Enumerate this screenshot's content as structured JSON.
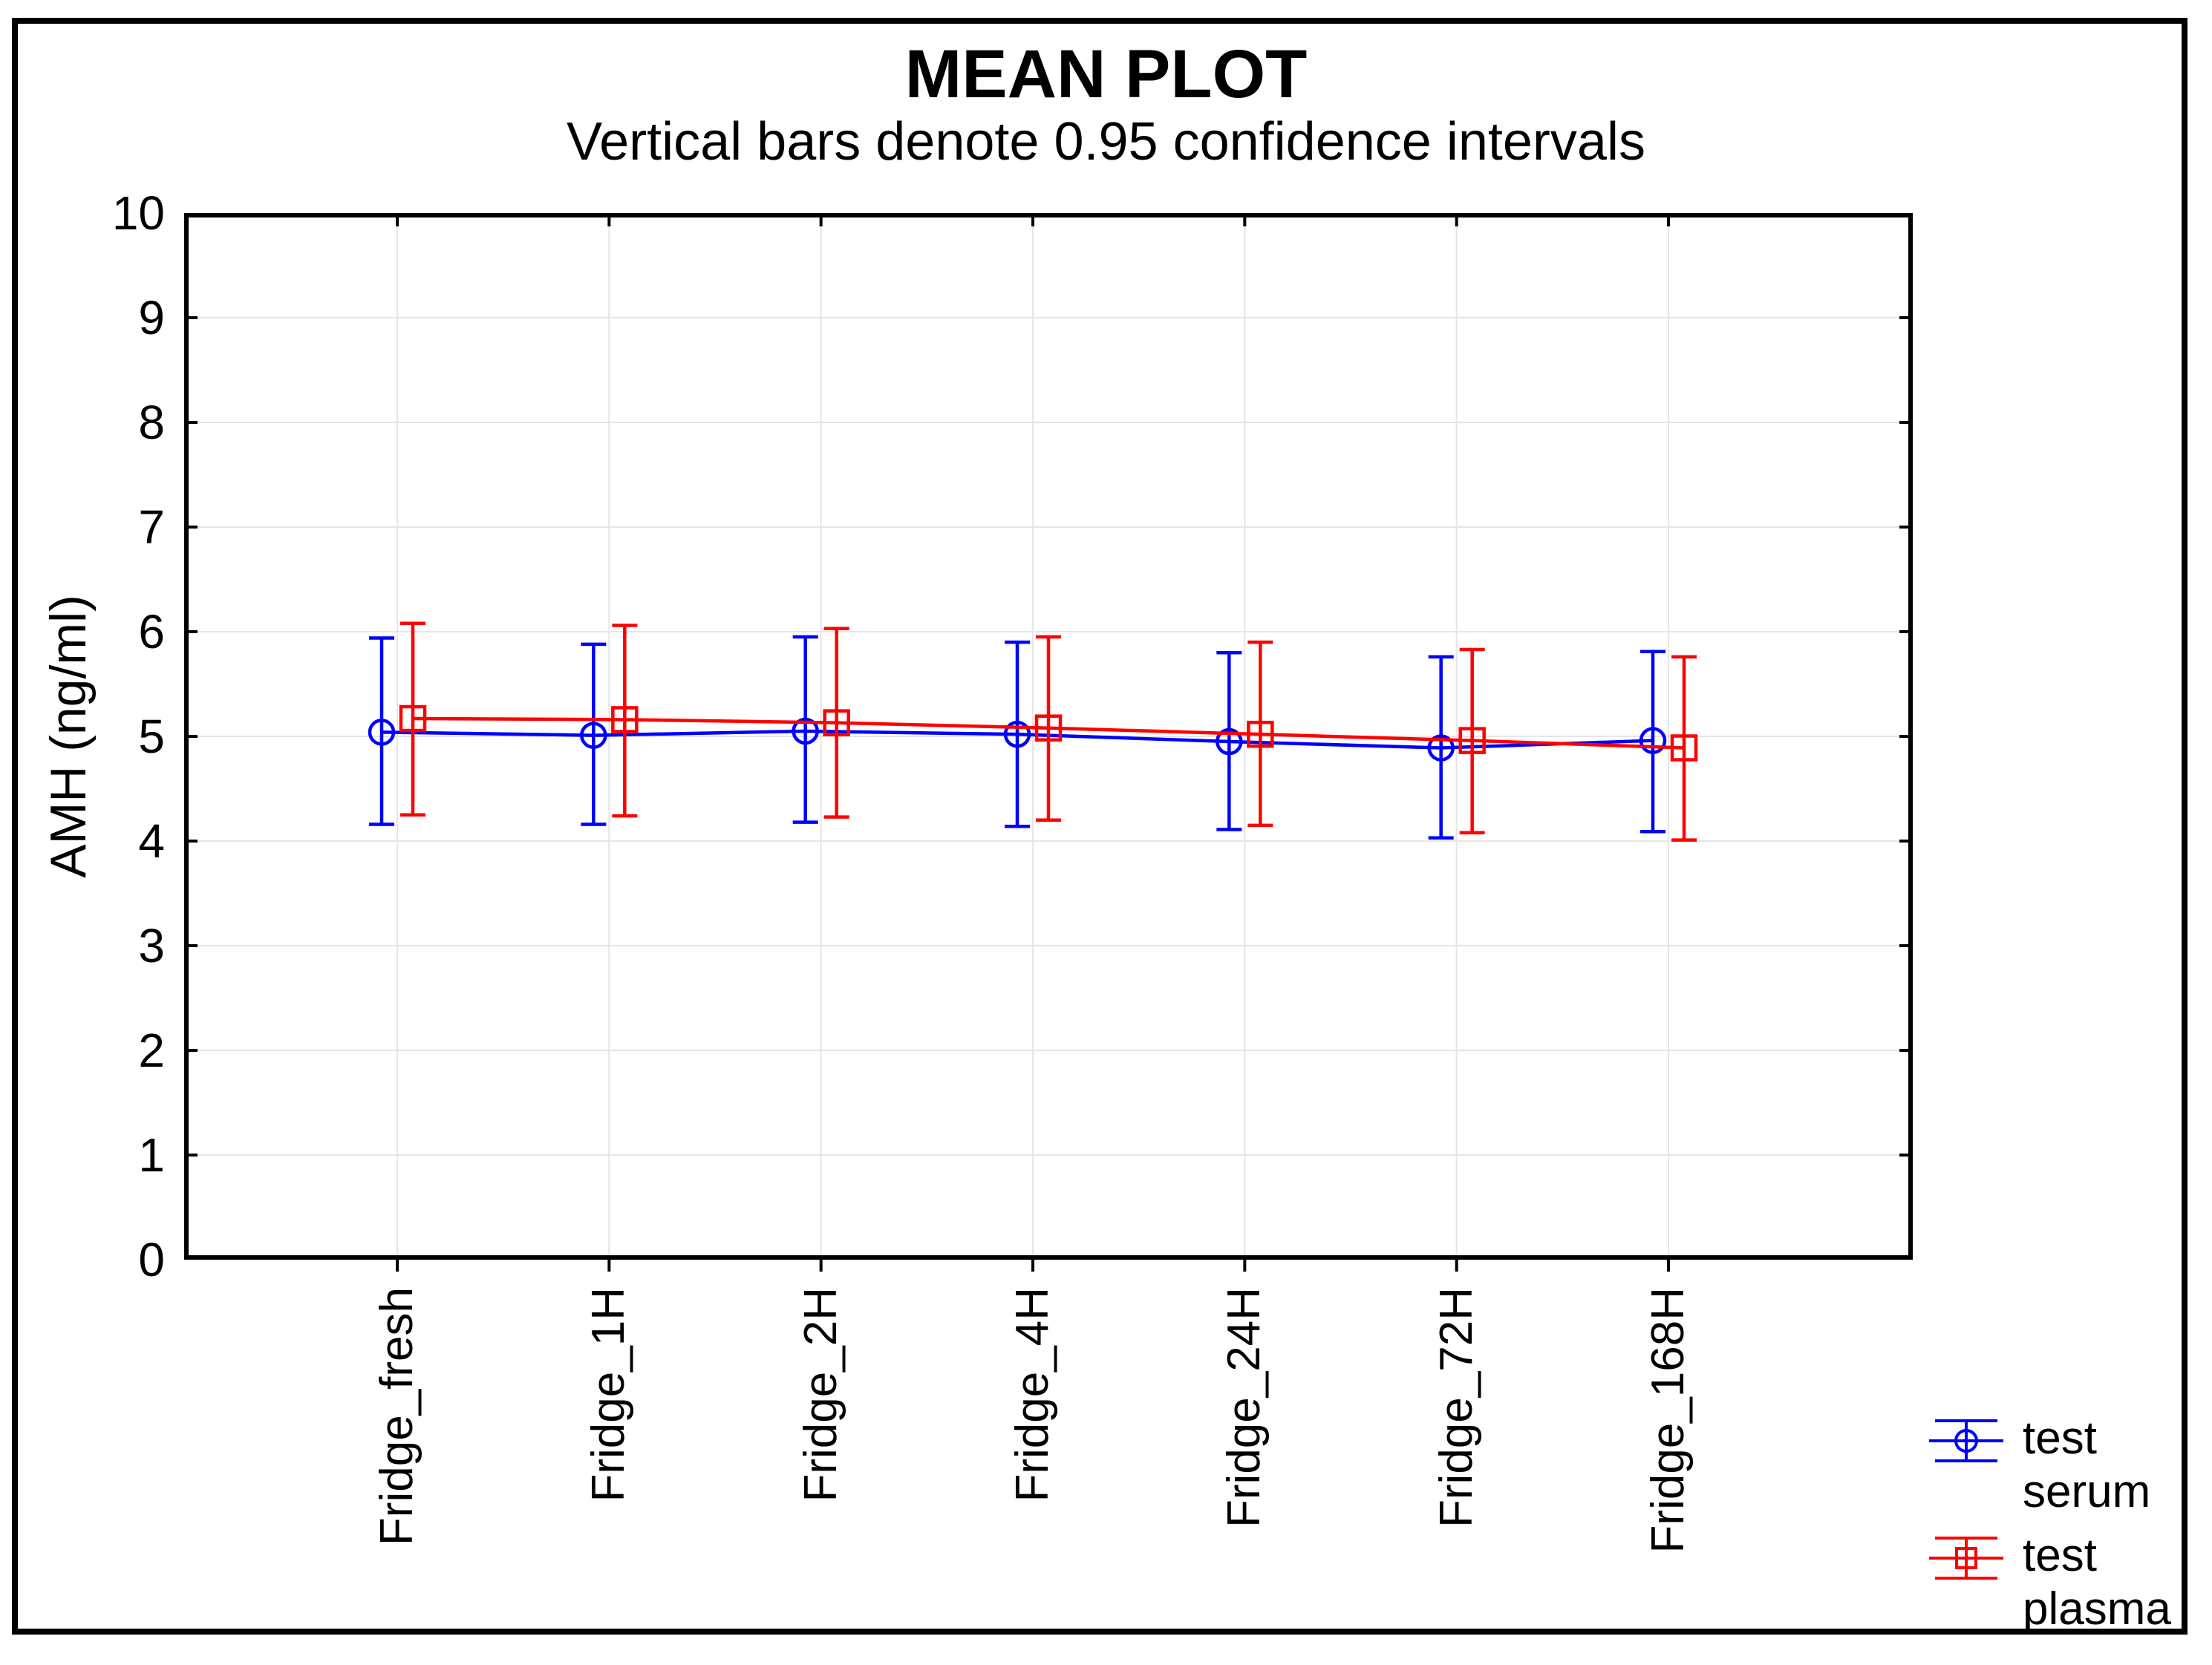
{
  "window": {
    "title": "MEAN PLOT",
    "subtitle": "Vertical bars denote 0.95 confidence intervals"
  },
  "y_axis": {
    "label": "AMH (ng/ml)",
    "tick_labels": [
      "0",
      "1",
      "2",
      "3",
      "4",
      "5",
      "6",
      "7",
      "8",
      "9",
      "10"
    ]
  },
  "x_axis": {
    "tick_labels": [
      "Fridge_fresh",
      "Fridge_1H",
      "Fridge_2H",
      "Fridge_4H",
      "Fridge_24H",
      "Fridge_72H",
      "Fridge_168H"
    ]
  },
  "legend": {
    "items": [
      {
        "lines": [
          "test",
          "serum"
        ],
        "color": "#0000ff",
        "marker": "circle"
      },
      {
        "lines": [
          "test",
          "plasma"
        ],
        "color": "#ff0000",
        "marker": "square"
      }
    ]
  },
  "colors": {
    "serum": "#0000ff",
    "plasma": "#ff0000",
    "grid": "#e6e6e6",
    "frame": "#000000",
    "background": "#ffffff"
  },
  "chart_data": {
    "type": "line",
    "title": "MEAN PLOT",
    "subtitle": "Vertical bars denote 0.95 confidence intervals",
    "error_bars": "0.95 confidence intervals",
    "categories": [
      "Fridge_fresh",
      "Fridge_1H",
      "Fridge_2H",
      "Fridge_4H",
      "Fridge_24H",
      "Fridge_72H",
      "Fridge_168H"
    ],
    "xlabel": "",
    "ylabel": "AMH (ng/ml)",
    "ylim": [
      0,
      10
    ],
    "ytick_step": 1,
    "grid": true,
    "legend_position": "bottom-right",
    "series": [
      {
        "name": "test serum",
        "color": "#0000ff",
        "marker": "circle",
        "means": [
          5.04,
          5.01,
          5.05,
          5.02,
          4.95,
          4.89,
          4.96
        ],
        "ci_low": [
          4.16,
          4.16,
          4.18,
          4.14,
          4.11,
          4.03,
          4.09
        ],
        "ci_high": [
          5.94,
          5.88,
          5.95,
          5.9,
          5.8,
          5.76,
          5.81
        ]
      },
      {
        "name": "test plasma",
        "color": "#ff0000",
        "marker": "square",
        "means": [
          5.17,
          5.16,
          5.13,
          5.08,
          5.02,
          4.96,
          4.89
        ],
        "ci_low": [
          4.25,
          4.24,
          4.23,
          4.2,
          4.15,
          4.08,
          4.01
        ],
        "ci_high": [
          6.08,
          6.06,
          6.03,
          5.95,
          5.9,
          5.83,
          5.76
        ]
      }
    ]
  }
}
